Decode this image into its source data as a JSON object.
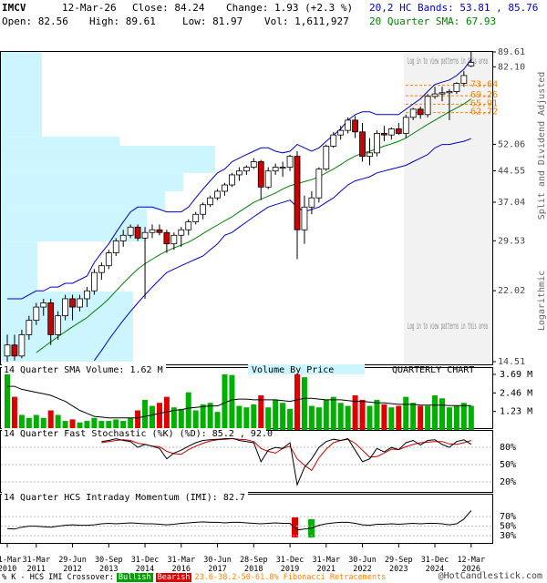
{
  "chart_data": {
    "type": "candlestick",
    "symbol": "IMCV",
    "date": "12-Mar-26",
    "close_text": "Close: 84.24",
    "change_text": "Change: 1.93 (+2.3 %)",
    "open_text": "Open: 82.56",
    "high_text": "High: 89.61",
    "low_text": "Low: 81.97",
    "vol_text": "Vol: 1,611,927",
    "categories": [
      "31-Mar 2010",
      null,
      null,
      null,
      "31-Mar 2011",
      null,
      null,
      null,
      null,
      "29-Jun 2012",
      null,
      null,
      null,
      null,
      "30-Sep 2013",
      null,
      null,
      null,
      null,
      "31-Dec 2014",
      null,
      null,
      null,
      null,
      "31-Mar 2016",
      null,
      null,
      null,
      null,
      "30-Jun 2017",
      null,
      null,
      null,
      null,
      "28-Sep 2018",
      null,
      null,
      null,
      null,
      "31-Dec 2019",
      null,
      null,
      null,
      null,
      "31-Mar 2021",
      null,
      null,
      null,
      null,
      "30-Jun 2022",
      null,
      null,
      null,
      null,
      "29-Sep 2023",
      null,
      null,
      null,
      null,
      "31-Dec 2024",
      null,
      null,
      null,
      null,
      "12-Mar 2026"
    ],
    "candles": [
      [
        15,
        17,
        14.5,
        16
      ],
      [
        16,
        17,
        14.6,
        15
      ],
      [
        15,
        17.5,
        14.8,
        17
      ],
      [
        17,
        19,
        16.5,
        18.5
      ],
      [
        18.5,
        20.5,
        18,
        20
      ],
      [
        20,
        21,
        19,
        20.5
      ],
      [
        20.5,
        21,
        16,
        17
      ],
      [
        17,
        19.5,
        16.5,
        19
      ],
      [
        19,
        21.5,
        18.5,
        21
      ],
      [
        21,
        21.5,
        18.5,
        20
      ],
      [
        20,
        21.5,
        19.5,
        21
      ],
      [
        21,
        22.5,
        20,
        22
      ],
      [
        22,
        25,
        21.5,
        24.5
      ],
      [
        24.5,
        26,
        23.5,
        25.5
      ],
      [
        25.5,
        28,
        25,
        27.5
      ],
      [
        27.5,
        30,
        27,
        29.5
      ],
      [
        29.5,
        31.5,
        28.5,
        30.5
      ],
      [
        30.5,
        32.5,
        30,
        32
      ],
      [
        32,
        32.5,
        29.5,
        30
      ],
      [
        30,
        32,
        21,
        31
      ],
      [
        31,
        32.5,
        30,
        31.5
      ],
      [
        31.5,
        32.5,
        30.5,
        31
      ],
      [
        31,
        31.5,
        27.5,
        29
      ],
      [
        29,
        31,
        28,
        30.5
      ],
      [
        30.5,
        32,
        28.5,
        31.5
      ],
      [
        31.5,
        33.5,
        30.5,
        33
      ],
      [
        33,
        35,
        32.5,
        34.5
      ],
      [
        34.5,
        37,
        33.5,
        36.5
      ],
      [
        36.5,
        38.5,
        36,
        38
      ],
      [
        38,
        40,
        37.5,
        39.5
      ],
      [
        39.5,
        41.5,
        38.5,
        41
      ],
      [
        41,
        44,
        40.5,
        43.5
      ],
      [
        43.5,
        45.5,
        42,
        44.5
      ],
      [
        44.5,
        46,
        43.5,
        45.5
      ],
      [
        45.5,
        48,
        45,
        47
      ],
      [
        47,
        47.5,
        37.5,
        40.5
      ],
      [
        40.5,
        45.5,
        40,
        44.5
      ],
      [
        44.5,
        46.5,
        43.5,
        45.5
      ],
      [
        45.5,
        47,
        43,
        45.5
      ],
      [
        45.5,
        49,
        44.5,
        48.5
      ],
      [
        48.5,
        50,
        26.5,
        31.5
      ],
      [
        31.5,
        38.5,
        29,
        36
      ],
      [
        36,
        39.5,
        34.5,
        38
      ],
      [
        38,
        45.5,
        37,
        45
      ],
      [
        45,
        52,
        44.5,
        51.5
      ],
      [
        51.5,
        56,
        51,
        55
      ],
      [
        55,
        58,
        53.5,
        56.5
      ],
      [
        56.5,
        61,
        55.5,
        60
      ],
      [
        60,
        61.5,
        54,
        56
      ],
      [
        56,
        59,
        47,
        48.5
      ],
      [
        48.5,
        54,
        46,
        49.5
      ],
      [
        49.5,
        56.5,
        48.5,
        55.5
      ],
      [
        55.5,
        58,
        53,
        55
      ],
      [
        55,
        57.5,
        53.5,
        57
      ],
      [
        57,
        59,
        55,
        55.5
      ],
      [
        55.5,
        62,
        54,
        61
      ],
      [
        61,
        64.5,
        60,
        64
      ],
      [
        64,
        65,
        60.5,
        62
      ],
      [
        62,
        70,
        61,
        69
      ],
      [
        69,
        73,
        68,
        70
      ],
      [
        70,
        73,
        67,
        70.5
      ],
      [
        70.5,
        72,
        60,
        71
      ],
      [
        71,
        75,
        70,
        74.5
      ],
      [
        74.5,
        80,
        73,
        78
      ],
      [
        82.56,
        89.61,
        81.97,
        84.24
      ]
    ],
    "up_color": "#ffffff",
    "down_color": "#cc0000",
    "ylim": [
      14.51,
      89.61
    ],
    "log_scale": true,
    "yticks": [
      89.61,
      {
        "value": 82.1,
        "label": "82.10"
      },
      52.06,
      44.55,
      37.04,
      29.53,
      22.02,
      14.51
    ],
    "fib_levels": [
      73.64,
      69.26,
      65.91,
      62.72
    ],
    "fib_color": "#ff8000",
    "bands": {
      "label": "20,2 HC Bands: 53.81 , 85.76",
      "color": "#0000cc",
      "upper": [
        21,
        21,
        21,
        21.5,
        22,
        22,
        22.5,
        22.5,
        23,
        23,
        23.5,
        24,
        26,
        27.5,
        29,
        31,
        33,
        35,
        36,
        36,
        36,
        35.5,
        35,
        35,
        35,
        36,
        38,
        40,
        42,
        44,
        45,
        47,
        48,
        49,
        50,
        51,
        51,
        50,
        49.5,
        50,
        52,
        51,
        50,
        51,
        53,
        55,
        57,
        60,
        62,
        63,
        63,
        62,
        62,
        62,
        62,
        64,
        66,
        68,
        71,
        74,
        75,
        76,
        78,
        81,
        85.76
      ],
      "lower": [
        null,
        null,
        null,
        null,
        null,
        null,
        null,
        null,
        null,
        null,
        null,
        null,
        14.6,
        15.5,
        16.5,
        17.5,
        18.5,
        19.5,
        20.5,
        21.5,
        22.5,
        23.5,
        24.5,
        25,
        25.5,
        26,
        26.5,
        27,
        28,
        29,
        30.5,
        31,
        32,
        33,
        34,
        35,
        36,
        36.5,
        37,
        37.5,
        36,
        35,
        35.5,
        36,
        37,
        38,
        39.5,
        41,
        42,
        42.5,
        43,
        44,
        44.5,
        45,
        45.5,
        46,
        47,
        48,
        49,
        51,
        52,
        52,
        52.5,
        53,
        53.81
      ]
    },
    "sma": {
      "label": "20 Quarter SMA: 67.93",
      "color": "#008000",
      "values": [
        null,
        null,
        null,
        null,
        15.3,
        15.8,
        16.3,
        16.8,
        17.3,
        17.8,
        18.3,
        18.8,
        19.5,
        20.2,
        21,
        22,
        23,
        24,
        25,
        25.8,
        26.5,
        27.2,
        27.8,
        28.3,
        28.8,
        29.3,
        30,
        30.8,
        31.6,
        32.4,
        33.2,
        34,
        35,
        36,
        37,
        37.7,
        38.4,
        39.1,
        40,
        40.8,
        41.3,
        41.8,
        42.3,
        43,
        44,
        45,
        46.2,
        47.5,
        48.6,
        49.4,
        50,
        50.7,
        51.5,
        52.2,
        53,
        54,
        55.5,
        57,
        58.5,
        60,
        61.5,
        63,
        64.5,
        66,
        67.93
      ]
    },
    "side_labels": [
      "Split and Dividend Adjusted",
      "Logarithmic"
    ],
    "pattern_note": "Log in to view patterns in this area",
    "chart_label": "QUARTERLY CHART",
    "volume_by_price": {
      "label": "Volume By Price",
      "color": "#ccf5ff",
      "bins": [
        14.51,
        21.9,
        29.4,
        35.5,
        39.5,
        44,
        51.6,
        54.4,
        89.61
      ],
      "values": [
        145,
        40,
        160,
        180,
        200,
        235,
        130,
        45
      ]
    },
    "volume": {
      "label": "14 Quarter SMA Volume: 1.62 M",
      "up_color": "#00b000",
      "down_color": "#e00000",
      "sma_color": "#000000",
      "values": [
        3.7,
        2.2,
        1.0,
        0.8,
        1.0,
        0.8,
        1.3,
        1.0,
        0.6,
        0.7,
        0.5,
        0.6,
        0.8,
        0.6,
        0.6,
        0.7,
        0.6,
        0.8,
        1.3,
        2.0,
        1.6,
        1.8,
        2.2,
        1.5,
        1.4,
        2.5,
        1.3,
        1.7,
        1.8,
        1.2,
        3.69,
        3.65,
        1.6,
        1.5,
        1.7,
        2.3,
        1.5,
        2.0,
        1.8,
        1.4,
        3.7,
        3.5,
        1.6,
        1.5,
        2.0,
        2.2,
        1.8,
        1.6,
        2.3,
        2.0,
        1.6,
        2.0,
        1.7,
        1.5,
        1.6,
        2.2,
        1.8,
        1.6,
        1.6,
        2.3,
        2.1,
        1.5,
        1.6,
        1.8,
        1.6
      ],
      "sma": [
        2.9,
        2.9,
        2.7,
        2.6,
        2.5,
        2.4,
        2.3,
        2.1,
        1.9,
        1.6,
        1.3,
        1.1,
        0.9,
        0.85,
        0.8,
        0.8,
        0.8,
        0.8,
        0.8,
        0.9,
        1.0,
        1.1,
        1.2,
        1.3,
        1.35,
        1.45,
        1.5,
        1.55,
        1.6,
        1.6,
        1.8,
        2.0,
        2.05,
        2.05,
        2.0,
        2.0,
        2.0,
        2.0,
        1.95,
        1.9,
        2.0,
        2.1,
        2.1,
        2.05,
        2.0,
        2.0,
        2.0,
        1.95,
        1.9,
        1.9,
        1.85,
        1.8,
        1.8,
        1.75,
        1.7,
        1.7,
        1.7,
        1.65,
        1.65,
        1.65,
        1.65,
        1.62,
        1.62,
        1.62,
        1.62
      ],
      "ylim": [
        0,
        3.69
      ],
      "yticks": [
        {
          "value": 3.69,
          "label": "3.69 M"
        },
        {
          "value": 2.46,
          "label": "2.46 M"
        },
        {
          "value": 1.23,
          "label": "1.23 M"
        }
      ]
    },
    "stochastic": {
      "label": "14 Quarter Fast Stochastic (%K) (%D): 85.2 , 92.0",
      "k_color": "#000000",
      "d_color": "#cc0000",
      "k": [
        null,
        null,
        null,
        null,
        null,
        null,
        null,
        null,
        null,
        null,
        null,
        null,
        null,
        90,
        92,
        95,
        92,
        90,
        80,
        85,
        82,
        78,
        60,
        70,
        75,
        82,
        88,
        92,
        93,
        94,
        95,
        96,
        92,
        90,
        88,
        55,
        75,
        80,
        78,
        88,
        15,
        45,
        60,
        80,
        90,
        94,
        92,
        95,
        75,
        55,
        60,
        78,
        72,
        80,
        76,
        88,
        92,
        84,
        92,
        93,
        85,
        80,
        90,
        93,
        85.2
      ],
      "d": [
        null,
        null,
        null,
        null,
        null,
        null,
        null,
        null,
        null,
        null,
        null,
        null,
        null,
        88,
        90,
        92,
        93,
        92,
        87,
        85,
        82,
        81,
        73,
        69,
        68,
        76,
        82,
        87,
        91,
        93,
        94,
        95,
        94,
        93,
        90,
        78,
        73,
        70,
        78,
        82,
        60,
        49,
        40,
        62,
        77,
        88,
        92,
        94,
        87,
        75,
        63,
        64,
        70,
        77,
        76,
        81,
        85,
        88,
        89,
        90,
        90,
        86,
        85,
        88,
        92.0
      ],
      "ylim": [
        0,
        100
      ],
      "yticks": [
        {
          "value": 80,
          "label": "80%"
        },
        {
          "value": 50,
          "label": "50%"
        },
        {
          "value": 20,
          "label": "20%"
        }
      ]
    },
    "imi": {
      "label": "14 Quarter HCS Intraday Momentum (IMI): 82.7",
      "color": "#000000",
      "values": [
        45,
        44,
        48,
        50,
        50,
        49,
        48,
        50,
        52,
        53,
        52,
        52,
        53,
        55,
        56,
        55,
        56,
        57,
        56,
        55,
        55,
        54,
        53,
        54,
        56,
        57,
        58,
        59,
        58,
        58,
        57,
        58,
        58,
        57,
        56,
        55,
        56,
        57,
        56,
        56,
        42,
        44,
        46,
        52,
        55,
        57,
        58,
        58,
        56,
        53,
        52,
        54,
        54,
        55,
        54,
        55,
        56,
        55,
        56,
        56,
        55,
        53,
        55,
        65,
        82.7
      ],
      "ylim": [
        15,
        100
      ],
      "yticks": [
        {
          "value": 70,
          "label": "70%"
        },
        {
          "value": 50,
          "label": "50%"
        },
        {
          "value": 30,
          "label": "30%"
        }
      ]
    },
    "footer": {
      "crossover": "% K - HCS IMI Crossover:",
      "bullish": "Bullish",
      "bearish": "Bearish",
      "fib": "23.6-38.2-50-61.8% Fibonacci Retracements",
      "credit": "@HotCandlestick.com"
    }
  }
}
